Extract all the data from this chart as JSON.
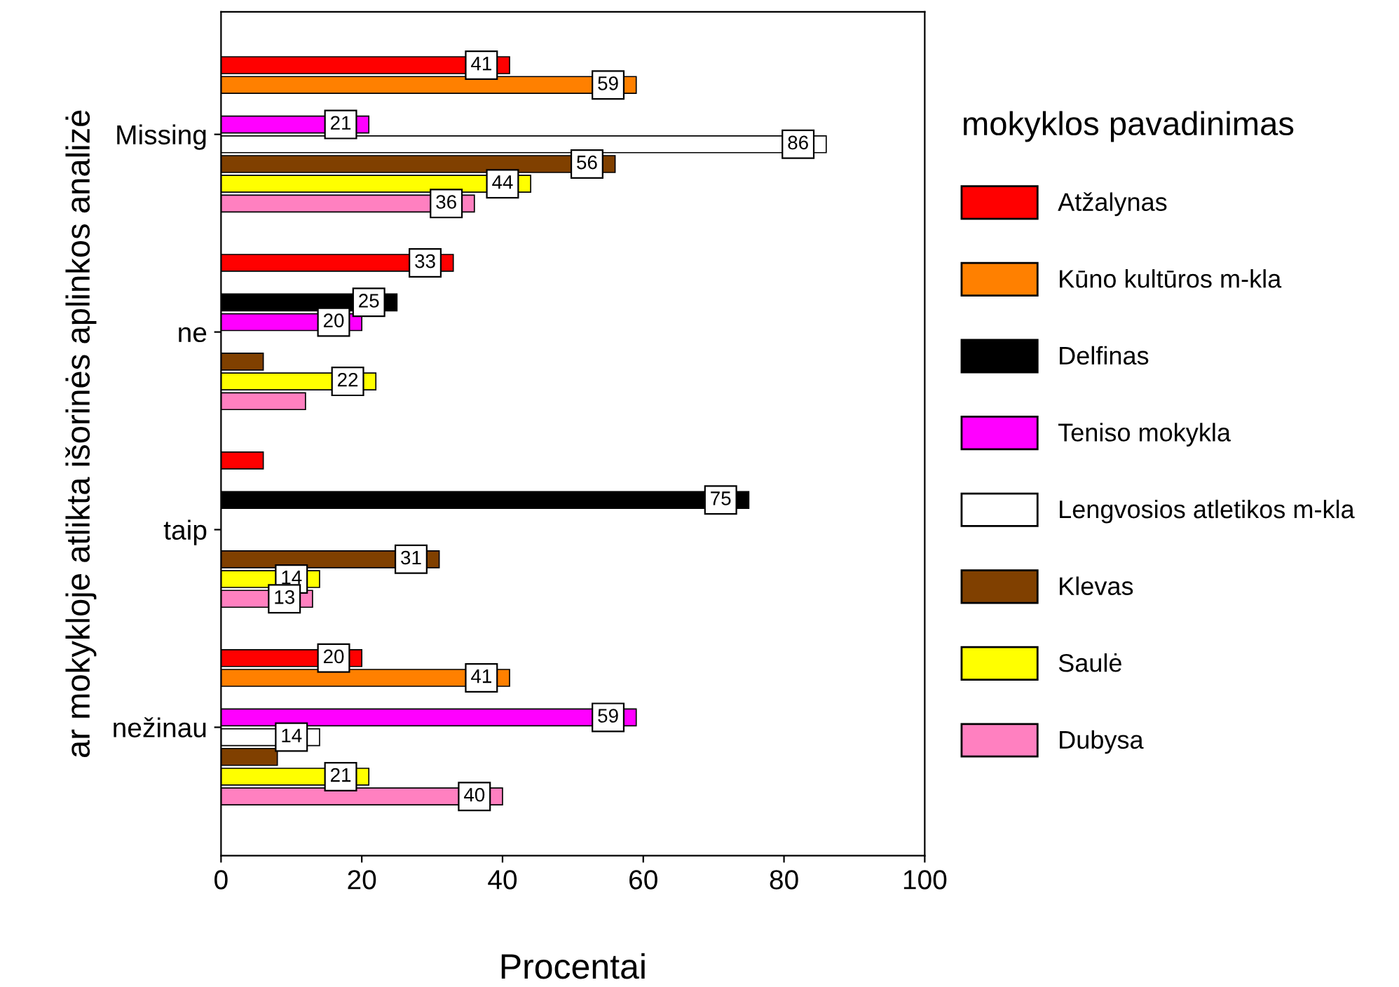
{
  "chart_data": {
    "type": "bar",
    "orientation": "horizontal",
    "xlabel": "Procentai",
    "ylabel": "ar mokykloje atlikta išorinės aplinkos analizė",
    "legend_title": "mokyklos pavadinimas",
    "legend": "right",
    "grid": false,
    "xlim": [
      0,
      100
    ],
    "xticks": [
      0,
      20,
      40,
      60,
      80,
      100
    ],
    "categories": [
      "Missing",
      "ne",
      "taip",
      "nežinau"
    ],
    "series": [
      {
        "name": "Atžalynas",
        "color": "#ff0000",
        "values": [
          41,
          33,
          6,
          20
        ],
        "value_labels": [
          "41",
          "33",
          null,
          "20"
        ]
      },
      {
        "name": "Kūno kultūros m-kla",
        "color": "#ff8000",
        "values": [
          59,
          null,
          null,
          41
        ],
        "value_labels": [
          "59",
          null,
          null,
          "41"
        ]
      },
      {
        "name": "Delfinas",
        "color": "#000000",
        "values": [
          null,
          25,
          75,
          null
        ],
        "value_labels": [
          null,
          "25",
          "75",
          null
        ]
      },
      {
        "name": "Teniso mokykla",
        "color": "#ff00ff",
        "values": [
          21,
          20,
          null,
          59
        ],
        "value_labels": [
          "21",
          "20",
          null,
          "59"
        ]
      },
      {
        "name": "Lengvosios atletikos m-kla",
        "color": "#ffffff",
        "values": [
          86,
          null,
          null,
          14
        ],
        "value_labels": [
          "86",
          null,
          null,
          "14"
        ]
      },
      {
        "name": "Klevas",
        "color": "#804000",
        "values": [
          56,
          6,
          31,
          8
        ],
        "value_labels": [
          "56",
          null,
          "31",
          null
        ]
      },
      {
        "name": "Saulė",
        "color": "#ffff00",
        "values": [
          44,
          22,
          14,
          21
        ],
        "value_labels": [
          "44",
          "22",
          "14",
          "21"
        ]
      },
      {
        "name": "Dubysa",
        "color": "#ff80c0",
        "values": [
          36,
          12,
          13,
          40
        ],
        "value_labels": [
          "36",
          null,
          "13",
          "40"
        ]
      }
    ]
  }
}
